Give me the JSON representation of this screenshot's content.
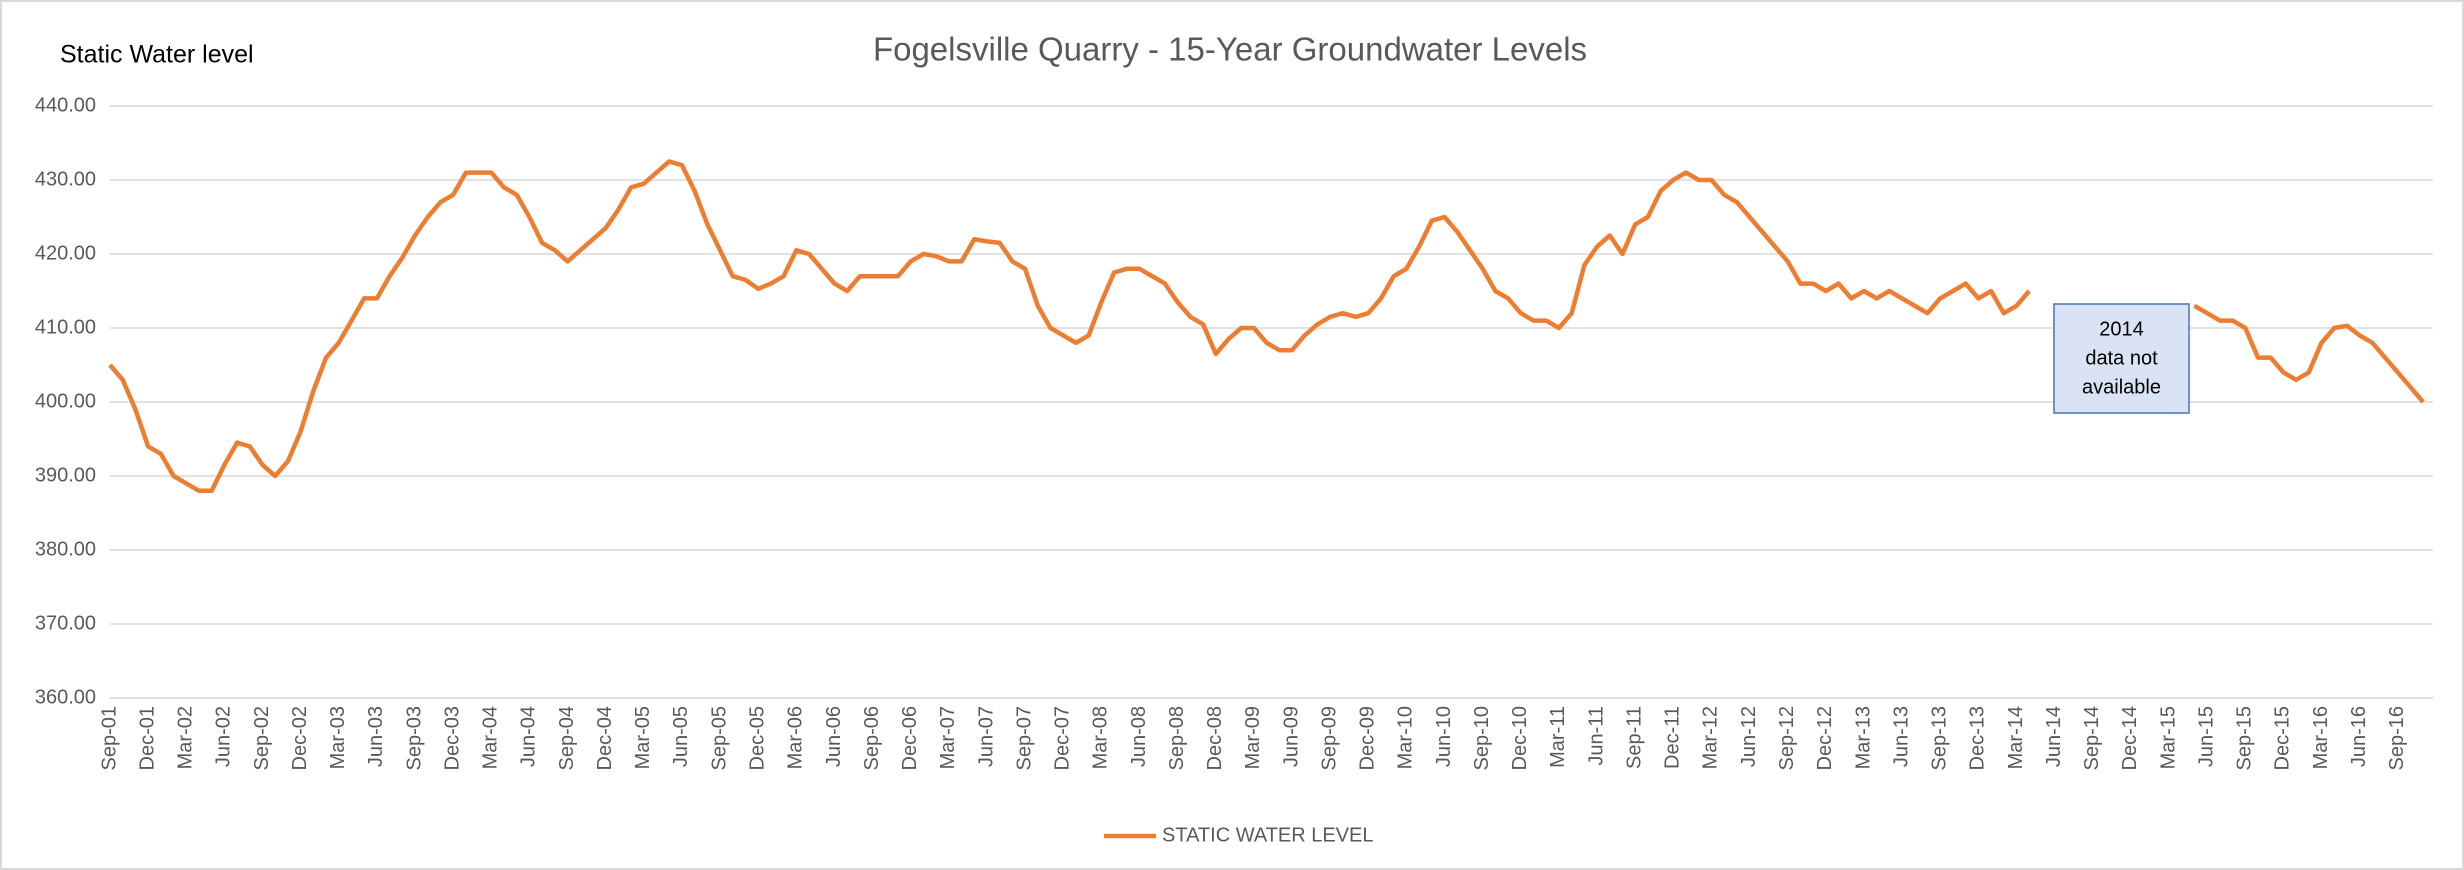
{
  "chart_data": {
    "type": "line",
    "title": "Fogelsville Quarry - 15-Year Groundwater Levels",
    "y_label": "Static Water level",
    "annotation": [
      "2014",
      "data not",
      "available"
    ],
    "categories": [
      "Sep-01",
      null,
      null,
      "Dec-01",
      null,
      null,
      "Mar-02",
      null,
      null,
      "Jun-02",
      null,
      null,
      "Sep-02",
      null,
      null,
      "Dec-02",
      null,
      null,
      "Mar-03",
      null,
      null,
      "Jun-03",
      null,
      null,
      "Sep-03",
      null,
      null,
      "Dec-03",
      null,
      null,
      "Mar-04",
      null,
      null,
      "Jun-04",
      null,
      null,
      "Sep-04",
      null,
      null,
      "Dec-04",
      null,
      null,
      "Mar-05",
      null,
      null,
      "Jun-05",
      null,
      null,
      "Sep-05",
      null,
      null,
      "Dec-05",
      null,
      null,
      "Mar-06",
      null,
      null,
      "Jun-06",
      null,
      null,
      "Sep-06",
      null,
      null,
      "Dec-06",
      null,
      null,
      "Mar-07",
      null,
      null,
      "Jun-07",
      null,
      null,
      "Sep-07",
      null,
      null,
      "Dec-07",
      null,
      null,
      "Mar-08",
      null,
      null,
      "Jun-08",
      null,
      null,
      "Sep-08",
      null,
      null,
      "Dec-08",
      null,
      null,
      "Mar-09",
      null,
      null,
      "Jun-09",
      null,
      null,
      "Sep-09",
      null,
      null,
      "Dec-09",
      null,
      null,
      "Mar-10",
      null,
      null,
      "Jun-10",
      null,
      null,
      "Sep-10",
      null,
      null,
      "Dec-10",
      null,
      null,
      "Mar-11",
      null,
      null,
      "Jun-11",
      null,
      null,
      "Sep-11",
      null,
      null,
      "Dec-11",
      null,
      null,
      "Mar-12",
      null,
      null,
      "Jun-12",
      null,
      null,
      "Sep-12",
      null,
      null,
      "Dec-12",
      null,
      null,
      "Mar-13",
      null,
      null,
      "Jun-13",
      null,
      null,
      "Sep-13",
      null,
      null,
      "Dec-13",
      null,
      null,
      "Mar-14",
      null,
      null,
      "Jun-14",
      null,
      null,
      "Sep-14",
      null,
      null,
      "Dec-14",
      null,
      null,
      "Mar-15",
      null,
      null,
      "Jun-15",
      null,
      null,
      "Sep-15",
      null,
      null,
      "Dec-15",
      null,
      null,
      "Mar-16",
      null,
      null,
      "Jun-16",
      null,
      null,
      "Sep-16",
      null,
      null
    ],
    "series": [
      {
        "name": "STATIC WATER LEVEL",
        "color": "#ed7d31",
        "values": [
          405,
          403,
          399,
          394,
          393,
          390,
          389,
          388,
          388,
          391.5,
          394.5,
          394,
          391.5,
          390,
          392,
          396,
          401.5,
          406,
          408,
          411,
          414,
          414,
          417,
          419.5,
          422.5,
          425,
          427,
          428,
          431,
          431,
          431,
          429,
          428,
          425,
          421.5,
          420.5,
          419,
          420.5,
          422,
          423.5,
          426,
          429,
          429.5,
          431,
          432.5,
          432,
          428.5,
          424,
          420.5,
          417,
          416.5,
          415.3,
          416,
          417,
          420.5,
          420,
          418,
          416,
          415,
          417,
          417,
          417,
          417,
          419,
          420,
          419.7,
          419,
          419,
          422,
          421.7,
          421.5,
          419,
          418,
          413,
          410,
          409,
          408,
          409,
          413.5,
          417.5,
          418,
          418,
          417,
          416,
          413.5,
          411.5,
          410.5,
          406.5,
          408.5,
          410,
          410,
          408,
          407,
          407,
          409,
          410.5,
          411.5,
          412,
          411.5,
          412,
          414,
          417,
          418,
          421,
          424.5,
          425,
          423,
          420.5,
          418,
          415,
          414,
          412,
          411,
          411,
          410,
          412,
          418.5,
          421,
          422.5,
          420,
          424,
          425,
          428.5,
          430,
          431,
          430,
          430,
          428,
          427,
          425,
          423,
          421,
          419,
          416,
          416,
          415,
          416,
          414,
          415,
          414,
          415,
          414,
          413,
          412,
          414,
          415,
          416,
          414,
          415,
          412,
          413,
          415,
          null,
          null,
          null,
          null,
          null,
          null,
          null,
          null,
          null,
          null,
          null,
          null,
          413,
          412,
          411,
          411,
          410,
          406,
          406,
          404,
          403,
          404,
          408,
          410,
          410.3,
          409,
          408,
          406,
          404,
          402,
          400
        ]
      }
    ],
    "ylim": [
      360,
      440
    ],
    "yticks": [
      {
        "value": 360,
        "label": "360.00"
      },
      {
        "value": 370,
        "label": "370.00"
      },
      {
        "value": 380,
        "label": "380.00"
      },
      {
        "value": 390,
        "label": "390.00"
      },
      {
        "value": 400,
        "label": "400.00"
      },
      {
        "value": 410,
        "label": "410.00"
      },
      {
        "value": 420,
        "label": "420.00"
      },
      {
        "value": 430,
        "label": "430.00"
      },
      {
        "value": 440,
        "label": "440.00"
      }
    ],
    "grid": true,
    "legend": "bottom"
  }
}
